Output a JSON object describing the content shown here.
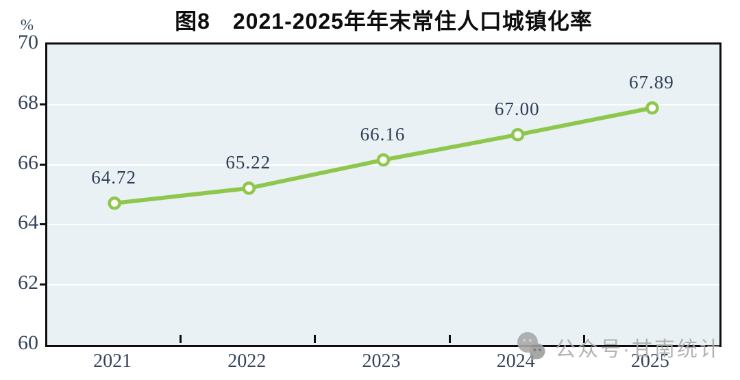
{
  "title": "图8　2021-2025年年末常住人口城镇化率",
  "y_axis_unit": "%",
  "watermark": {
    "icon": "wechat-icon",
    "text": "公众号·甘南统计",
    "color": "#ababab"
  },
  "chart_data": {
    "type": "line",
    "title": "图8　2021-2025年年末常住人口城镇化率",
    "categories": [
      "2021",
      "2022",
      "2023",
      "2024",
      "2025"
    ],
    "series": [
      {
        "name": "年末常住人口城镇化率",
        "values": [
          64.72,
          65.22,
          66.16,
          67.0,
          67.89
        ],
        "labels": [
          "64.72",
          "65.22",
          "66.16",
          "67.00",
          "67.89"
        ]
      }
    ],
    "xlabel": "",
    "ylabel": "%",
    "ylim": [
      60,
      70
    ],
    "yticks": [
      60,
      62,
      64,
      66,
      68,
      70
    ],
    "grid": "horizontal-white",
    "legend": "none",
    "colors": {
      "line": "#8ec74c",
      "marker_fill": "#ffffff",
      "plot_bg": "#e9f1f5",
      "gridline": "#ffffff",
      "axis_text": "#35435a",
      "label_text": "#2f3e55",
      "border": "#0d0d0d"
    }
  }
}
